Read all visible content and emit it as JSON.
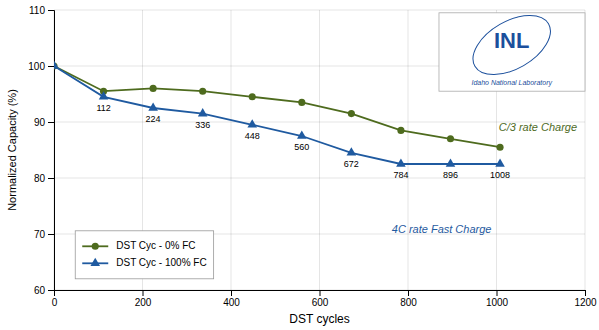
{
  "chart_data": {
    "type": "line",
    "x": [
      0,
      112,
      224,
      336,
      448,
      560,
      672,
      784,
      896,
      1008
    ],
    "series": [
      {
        "name": "DST Cyc - 0% FC",
        "color": "#4e6b1e",
        "marker": "circle",
        "line_style": "solid",
        "values": [
          100,
          95.5,
          96.0,
          95.5,
          94.5,
          93.5,
          91.5,
          88.5,
          87.0,
          85.5
        ]
      },
      {
        "name": "DST Cyc - 100% FC",
        "color": "#1f5aa0",
        "marker": "triangle",
        "line_style": "solid",
        "values": [
          100,
          94.5,
          92.5,
          91.5,
          89.5,
          87.5,
          84.5,
          82.5,
          82.5,
          82.5
        ]
      }
    ],
    "x_label": "DST cycles",
    "y_label": "Normalized Capacity (%)",
    "xlim": [
      0,
      1200
    ],
    "ylim": [
      60,
      110
    ],
    "xticks": [
      0,
      200,
      400,
      600,
      800,
      1000,
      1200
    ],
    "yticks": [
      60,
      70,
      80,
      90,
      100,
      110
    ],
    "grid": true,
    "legend": "lower left",
    "annotations": [
      {
        "text": "112",
        "x": 112,
        "y": 94.5
      },
      {
        "text": "224",
        "x": 224,
        "y": 92.5
      },
      {
        "text": "336",
        "x": 336,
        "y": 91.5
      },
      {
        "text": "448",
        "x": 448,
        "y": 89.5
      },
      {
        "text": "560",
        "x": 560,
        "y": 87.5
      },
      {
        "text": "672",
        "x": 672,
        "y": 84.5
      },
      {
        "text": "784",
        "x": 784,
        "y": 82.5
      },
      {
        "text": "896",
        "x": 896,
        "y": 82.5
      },
      {
        "text": "1008",
        "x": 1008,
        "y": 82.5
      }
    ],
    "notes": [
      {
        "text": "C/3 rate Charge",
        "color": "#4e6b1e"
      },
      {
        "text": "4C rate Fast Charge",
        "color": "#1f5aa0"
      }
    ],
    "logo": {
      "text": "INL",
      "subtitle": "Idaho National Laboratory",
      "color": "#1b4f9c"
    }
  }
}
